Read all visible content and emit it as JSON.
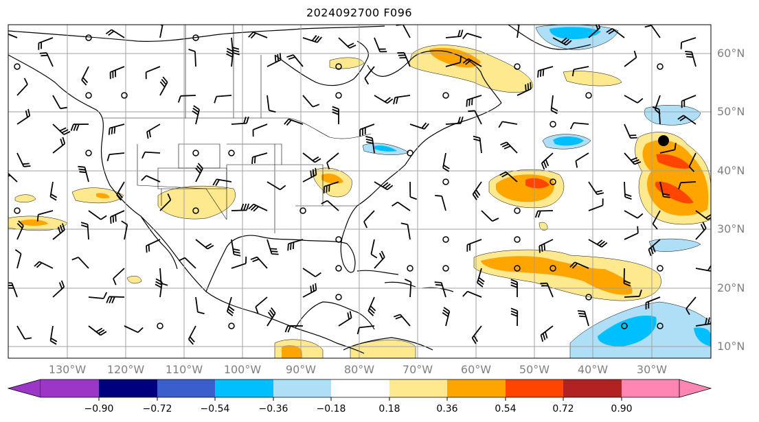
{
  "title": "2024092700 F096",
  "colors": {
    "land_lines": "#000000",
    "grid": "#a0a0a0",
    "tick_labels": "#808080"
  },
  "map": {
    "lon_range": [
      -140,
      -20
    ],
    "lat_range": [
      8,
      65
    ],
    "lon_labels": [
      "130°W",
      "120°W",
      "110°W",
      "100°W",
      "90°W",
      "80°W",
      "70°W",
      "60°W",
      "50°W",
      "40°W",
      "30°W"
    ],
    "lat_labels": [
      "60°N",
      "50°N",
      "40°N",
      "30°N",
      "20°N",
      "10°N"
    ],
    "marker": {
      "name": "black-dot",
      "lon": -27,
      "lat": 45
    }
  },
  "colorbar": {
    "ticks": [
      "−0.90",
      "−0.72",
      "−0.54",
      "−0.36",
      "−0.18",
      "0.18",
      "0.36",
      "0.54",
      "0.72",
      "0.90"
    ],
    "colors": [
      "#9b36c7",
      "#00007f",
      "#3a5fcd",
      "#00bfff",
      "#aedff7",
      "#ffffff",
      "#fee98f",
      "#ffa500",
      "#ff4500",
      "#b22222",
      "#ff85b3"
    ],
    "extend": "both"
  }
}
